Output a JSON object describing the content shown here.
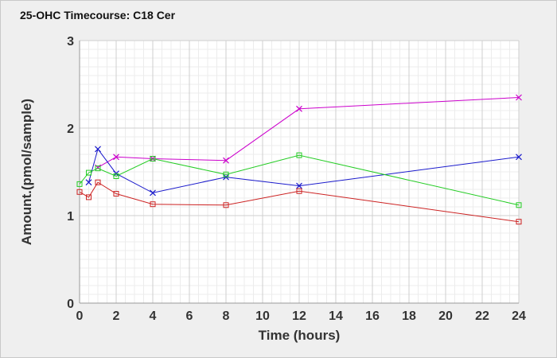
{
  "chart_data": {
    "type": "line",
    "title": "25-OHC Timecourse: C18 Cer",
    "xlabel": "Time (hours)",
    "ylabel": "Amount.(pmol/sample)",
    "xlim": [
      0,
      24
    ],
    "ylim": [
      0,
      3
    ],
    "x_ticks": [
      0,
      2,
      4,
      6,
      8,
      10,
      12,
      14,
      16,
      18,
      20,
      22,
      24
    ],
    "y_ticks": [
      0,
      1,
      2,
      3
    ],
    "grid": true,
    "series": [
      {
        "color": "#cc00cc",
        "marker": "x",
        "x": [
          1,
          2,
          4,
          8,
          12,
          24
        ],
        "y": [
          1.55,
          1.67,
          1.65,
          1.63,
          2.22,
          2.35
        ]
      },
      {
        "color": "#1a1acc",
        "marker": "x",
        "x": [
          0.5,
          1,
          2,
          4,
          8,
          12,
          24
        ],
        "y": [
          1.38,
          1.76,
          1.48,
          1.26,
          1.44,
          1.34,
          1.67
        ]
      },
      {
        "color": "#22cc22",
        "marker": "square",
        "x": [
          0,
          0.5,
          1,
          2,
          4,
          8,
          12,
          24
        ],
        "y": [
          1.36,
          1.49,
          1.54,
          1.45,
          1.65,
          1.47,
          1.69,
          1.12
        ]
      },
      {
        "color": "#cc2222",
        "marker": "square",
        "x": [
          0,
          0.5,
          1,
          2,
          4,
          8,
          12,
          24
        ],
        "y": [
          1.27,
          1.21,
          1.38,
          1.25,
          1.13,
          1.12,
          1.28,
          0.93
        ]
      }
    ]
  }
}
